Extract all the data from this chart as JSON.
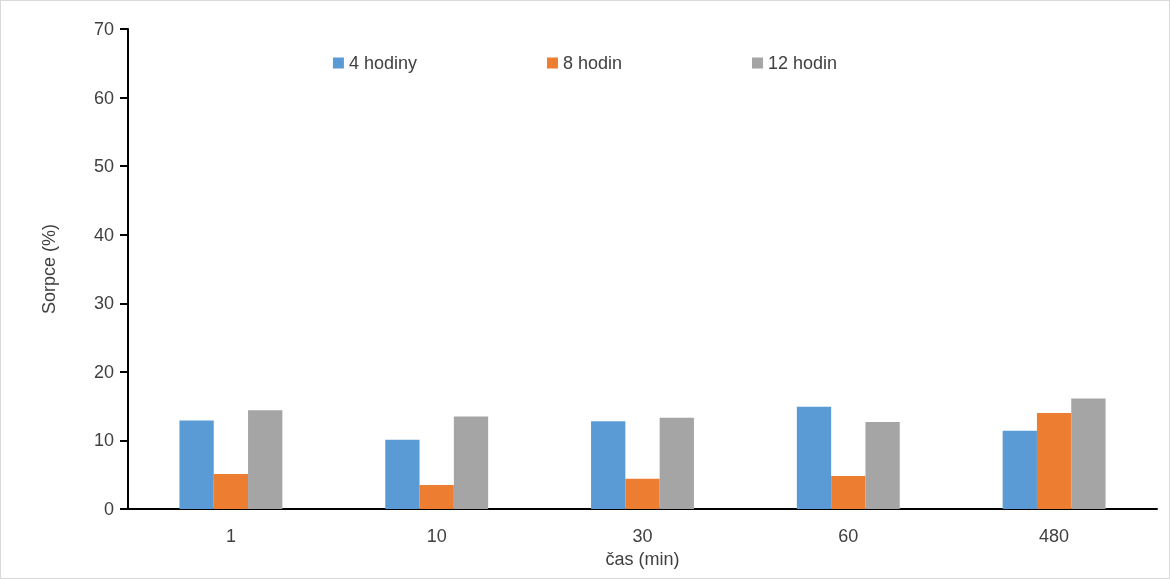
{
  "chart_data": {
    "type": "bar",
    "xlabel": "čas (min)",
    "ylabel": "Sorpce (%)",
    "categories": [
      "1",
      "10",
      "30",
      "60",
      "480"
    ],
    "series": [
      {
        "name": "4 hodiny",
        "color": "#5b9bd5",
        "values": [
          12.9,
          10.1,
          12.8,
          14.9,
          11.4
        ]
      },
      {
        "name": "8 hodin",
        "color": "#ed7d31",
        "values": [
          5.1,
          3.5,
          4.4,
          4.8,
          14.0
        ]
      },
      {
        "name": "12 hodin",
        "color": "#a5a5a5",
        "values": [
          14.4,
          13.5,
          13.3,
          12.7,
          16.1
        ]
      }
    ],
    "ylim": [
      0,
      70
    ],
    "yticks": [
      0,
      10,
      20,
      30,
      40,
      50,
      60,
      70
    ],
    "grid": false,
    "legend": "top"
  }
}
